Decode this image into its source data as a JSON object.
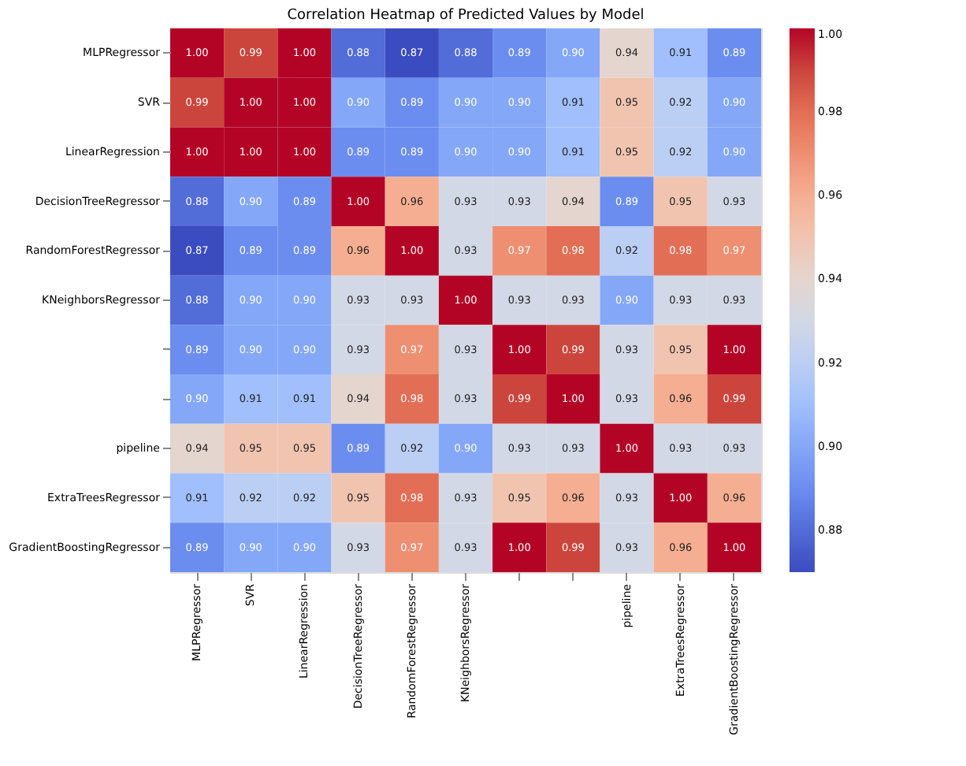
{
  "chart_data": {
    "type": "heatmap",
    "title": "Correlation Heatmap of Predicted Values by Model",
    "categories": [
      "MLPRegressor",
      "SVR",
      "LinearRegression",
      "DecisionTreeRegressor",
      "RandomForestRegressor",
      "KNeighborsRegressor",
      null,
      null,
      "pipeline",
      "ExtraTreesRegressor",
      "GradientBoostingRegressor"
    ],
    "y_categories": [
      "MLPRegressor",
      "SVR",
      "LinearRegression",
      "DecisionTreeRegressor",
      "RandomForestRegressor",
      "KNeighborsRegressor",
      null,
      null,
      "pipeline",
      "ExtraTreesRegressor",
      "GradientBoostingRegressor"
    ],
    "cells": [
      [
        1.0,
        0.99,
        1.0,
        0.88,
        0.87,
        0.88,
        0.89,
        0.9,
        0.94,
        0.91,
        0.89
      ],
      [
        0.99,
        1.0,
        1.0,
        0.9,
        0.89,
        0.9,
        0.9,
        0.91,
        0.95,
        0.92,
        0.9
      ],
      [
        1.0,
        1.0,
        1.0,
        0.89,
        0.89,
        0.9,
        0.9,
        0.91,
        0.95,
        0.92,
        0.9
      ],
      [
        0.88,
        0.9,
        0.89,
        1.0,
        0.96,
        0.93,
        0.93,
        0.94,
        0.89,
        0.95,
        0.93
      ],
      [
        0.87,
        0.89,
        0.89,
        0.96,
        1.0,
        0.93,
        0.97,
        0.98,
        0.92,
        0.98,
        0.97
      ],
      [
        0.88,
        0.9,
        0.9,
        0.93,
        0.93,
        1.0,
        0.93,
        0.93,
        0.9,
        0.93,
        0.93
      ],
      [
        0.89,
        0.9,
        0.9,
        0.93,
        0.97,
        0.93,
        1.0,
        0.99,
        0.93,
        0.95,
        1.0
      ],
      [
        0.9,
        0.91,
        0.91,
        0.94,
        0.98,
        0.93,
        0.99,
        1.0,
        0.93,
        0.96,
        0.99
      ],
      [
        0.94,
        0.95,
        0.95,
        0.89,
        0.92,
        0.9,
        0.93,
        0.93,
        1.0,
        0.93,
        0.93
      ],
      [
        0.91,
        0.92,
        0.92,
        0.95,
        0.98,
        0.93,
        0.95,
        0.96,
        0.93,
        1.0,
        0.96
      ],
      [
        0.89,
        0.9,
        0.9,
        0.93,
        0.97,
        0.93,
        1.0,
        0.99,
        0.93,
        0.96,
        1.0
      ]
    ],
    "cell_labels": [
      [
        "1.00",
        "0.99",
        "1.00",
        "0.88",
        "0.87",
        "0.88",
        "0.89",
        "0.90",
        "0.94",
        "0.91",
        "0.89"
      ],
      [
        "0.99",
        "1.00",
        "1.00",
        "0.90",
        "0.89",
        "0.90",
        "0.90",
        "0.91",
        "0.95",
        "0.92",
        "0.90"
      ],
      [
        "1.00",
        "1.00",
        "1.00",
        "0.89",
        "0.89",
        "0.90",
        "0.90",
        "0.91",
        "0.95",
        "0.92",
        "0.90"
      ],
      [
        "0.88",
        "0.90",
        "0.89",
        "1.00",
        "0.96",
        "0.93",
        "0.93",
        "0.94",
        "0.89",
        "0.95",
        "0.93"
      ],
      [
        "0.87",
        "0.89",
        "0.89",
        "0.96",
        "1.00",
        "0.93",
        "0.97",
        "0.98",
        "0.92",
        "0.98",
        "0.97"
      ],
      [
        "0.88",
        "0.90",
        "0.90",
        "0.93",
        "0.93",
        "1.00",
        "0.93",
        "0.93",
        "0.90",
        "0.93",
        "0.93"
      ],
      [
        "0.89",
        "0.90",
        "0.90",
        "0.93",
        "0.97",
        "0.93",
        "1.00",
        "0.99",
        "0.93",
        "0.95",
        "1.00"
      ],
      [
        "0.90",
        "0.91",
        "0.91",
        "0.94",
        "0.98",
        "0.93",
        "0.99",
        "1.00",
        "0.93",
        "0.96",
        "0.99"
      ],
      [
        "0.94",
        "0.95",
        "0.95",
        "0.89",
        "0.92",
        "0.90",
        "0.93",
        "0.93",
        "1.00",
        "0.93",
        "0.93"
      ],
      [
        "0.91",
        "0.92",
        "0.92",
        "0.95",
        "0.98",
        "0.93",
        "0.95",
        "0.96",
        "0.93",
        "1.00",
        "0.96"
      ],
      [
        "0.89",
        "0.90",
        "0.90",
        "0.93",
        "0.97",
        "0.93",
        "1.00",
        "0.99",
        "0.93",
        "0.96",
        "1.00"
      ]
    ],
    "clim": [
      0.87,
      1.0
    ],
    "cticks": [
      {
        "value": 0.88,
        "label": "0.88"
      },
      {
        "value": 0.9,
        "label": "0.90"
      },
      {
        "value": 0.92,
        "label": "0.92"
      },
      {
        "value": 0.94,
        "label": "0.94"
      },
      {
        "value": 0.96,
        "label": "0.96"
      },
      {
        "value": 0.98,
        "label": "0.98"
      },
      {
        "value": 1.0,
        "label": "1.00"
      }
    ],
    "data_labels": true
  }
}
